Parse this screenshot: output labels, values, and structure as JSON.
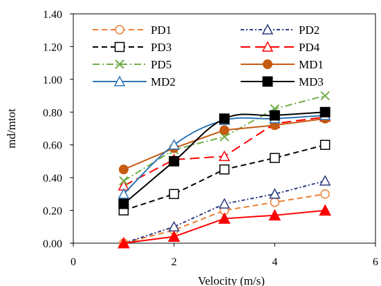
{
  "chart_data": {
    "type": "line",
    "xlabel": "Velocity (m/s)",
    "ylabel": "md/mtot",
    "xlim": [
      0,
      6
    ],
    "ylim": [
      0,
      1.4
    ],
    "x_ticks": [
      "0",
      "2",
      "4",
      "6"
    ],
    "y_ticks": [
      "0.00",
      "0.20",
      "0.40",
      "0.60",
      "0.80",
      "1.00",
      "1.20",
      "1.40"
    ],
    "grid": false,
    "legend_position": "top-inside",
    "series": [
      {
        "name": "PD1",
        "x": [
          1,
          2,
          3,
          4,
          5
        ],
        "y": [
          0.0,
          0.08,
          0.2,
          0.25,
          0.3
        ],
        "color": "#ED7D31",
        "dash": "dash",
        "marker": "circle-open",
        "smooth": false
      },
      {
        "name": "PD2",
        "x": [
          1,
          2,
          3,
          4,
          5
        ],
        "y": [
          0.0,
          0.1,
          0.24,
          0.3,
          0.38
        ],
        "color": "#2F3C80",
        "dash": "dot-dash",
        "marker": "triangle-open",
        "smooth": false
      },
      {
        "name": "PD3",
        "x": [
          1,
          2,
          3,
          4,
          5
        ],
        "y": [
          0.2,
          0.3,
          0.45,
          0.52,
          0.6
        ],
        "color": "#000000",
        "dash": "dash",
        "marker": "square-open",
        "smooth": false
      },
      {
        "name": "PD4",
        "x": [
          1,
          2,
          3,
          4,
          5
        ],
        "y": [
          0.35,
          0.51,
          0.53,
          0.73,
          0.77
        ],
        "color": "#FF0000",
        "dash": "long-dash",
        "marker": "triangle-open",
        "smooth": false
      },
      {
        "name": "PD5",
        "x": [
          1,
          2,
          3,
          4,
          5
        ],
        "y": [
          0.38,
          0.57,
          0.65,
          0.82,
          0.9
        ],
        "color": "#70AD47",
        "dash": "dash-dot",
        "marker": "x",
        "smooth": false
      },
      {
        "name": "MD1",
        "x": [
          1,
          2,
          3,
          4,
          5
        ],
        "y": [
          0.45,
          0.58,
          0.69,
          0.72,
          0.76
        ],
        "color": "#C55A11",
        "dash": "solid",
        "marker": "circle-filled",
        "smooth": false
      },
      {
        "name": "MD2",
        "x": [
          1,
          2,
          3,
          4,
          5
        ],
        "y": [
          0.3,
          0.6,
          0.75,
          0.76,
          0.78
        ],
        "color": "#2E75B6",
        "dash": "solid",
        "marker": "triangle-open",
        "smooth": true
      },
      {
        "name": "MD3",
        "x": [
          1,
          2,
          3,
          4,
          5
        ],
        "y": [
          0.24,
          0.5,
          0.76,
          0.78,
          0.8
        ],
        "color": "#000000",
        "dash": "solid",
        "marker": "square-filled",
        "smooth": true
      },
      {
        "name": "",
        "x": [
          1,
          2,
          3,
          4,
          5
        ],
        "y": [
          0.0,
          0.04,
          0.15,
          0.17,
          0.2
        ],
        "color": "#FF0000",
        "dash": "solid",
        "marker": "triangle-filled",
        "smooth": false
      }
    ]
  }
}
